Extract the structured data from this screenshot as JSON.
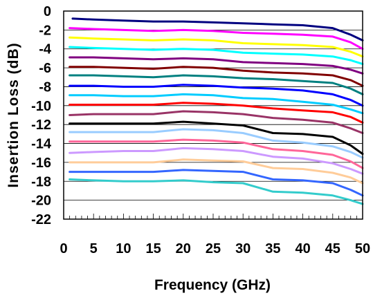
{
  "chart_data": {
    "type": "line",
    "title": "",
    "xlabel": "Frequency (GHz)",
    "ylabel": "Insertion Loss (dB)",
    "xlim": [
      0,
      50
    ],
    "ylim": [
      -22,
      0
    ],
    "x_ticks": [
      0,
      5,
      10,
      15,
      20,
      25,
      30,
      35,
      40,
      45,
      50
    ],
    "y_ticks": [
      0,
      -2,
      -4,
      -6,
      -8,
      -10,
      -12,
      -14,
      -16,
      -18,
      -20,
      -22
    ],
    "grid": true,
    "legend": "none",
    "series": [
      {
        "color": "#000080",
        "x": [
          1.5,
          5,
          10,
          15,
          20,
          25,
          30,
          35,
          40,
          45,
          48,
          50
        ],
        "values": [
          -0.8,
          -0.9,
          -1.0,
          -1.1,
          -1.1,
          -1.2,
          -1.3,
          -1.4,
          -1.5,
          -1.8,
          -2.5,
          -3.1
        ]
      },
      {
        "color": "#ff00ff",
        "x": [
          1,
          5,
          10,
          15,
          20,
          25,
          30,
          35,
          40,
          45,
          48,
          50
        ],
        "values": [
          -1.8,
          -1.9,
          -2.0,
          -2.1,
          -2.0,
          -2.1,
          -2.3,
          -2.4,
          -2.5,
          -2.7,
          -3.3,
          -4.0
        ]
      },
      {
        "color": "#ffff00",
        "x": [
          1,
          5,
          10,
          15,
          20,
          25,
          30,
          35,
          40,
          45,
          48,
          50
        ],
        "values": [
          -2.8,
          -2.9,
          -3.0,
          -3.1,
          -3.0,
          -3.1,
          -3.4,
          -3.5,
          -3.6,
          -3.8,
          -4.3,
          -4.8
        ]
      },
      {
        "color": "#00ffff",
        "x": [
          1,
          5,
          10,
          15,
          20,
          25,
          30,
          35,
          40,
          45,
          48,
          50
        ],
        "values": [
          -3.8,
          -3.9,
          -4.0,
          -4.1,
          -4.0,
          -4.1,
          -4.4,
          -4.5,
          -4.6,
          -4.8,
          -5.2,
          -5.6
        ]
      },
      {
        "color": "#800080",
        "x": [
          1,
          5,
          10,
          15,
          20,
          25,
          30,
          35,
          40,
          45,
          48,
          50
        ],
        "values": [
          -4.9,
          -4.9,
          -5.0,
          -5.1,
          -5.0,
          -5.1,
          -5.4,
          -5.5,
          -5.6,
          -5.8,
          -6.2,
          -6.6
        ]
      },
      {
        "color": "#800000",
        "x": [
          1,
          5,
          10,
          15,
          20,
          25,
          30,
          35,
          40,
          45,
          48,
          50
        ],
        "values": [
          -5.9,
          -5.9,
          -6.0,
          -6.1,
          -5.9,
          -6.0,
          -6.3,
          -6.5,
          -6.6,
          -6.8,
          -7.3,
          -7.9
        ]
      },
      {
        "color": "#008080",
        "x": [
          1,
          5,
          10,
          15,
          20,
          25,
          30,
          35,
          40,
          45,
          48,
          50
        ],
        "values": [
          -6.8,
          -6.8,
          -6.9,
          -7.0,
          -6.8,
          -6.9,
          -7.1,
          -7.2,
          -7.4,
          -7.6,
          -8.2,
          -8.8
        ]
      },
      {
        "color": "#0000ff",
        "x": [
          1,
          5,
          10,
          15,
          20,
          25,
          30,
          35,
          40,
          45,
          48,
          50
        ],
        "values": [
          -7.9,
          -7.9,
          -8.0,
          -8.0,
          -7.8,
          -7.9,
          -8.1,
          -8.2,
          -8.4,
          -8.8,
          -9.4,
          -10.0
        ]
      },
      {
        "color": "#00ccff",
        "x": [
          1,
          5,
          10,
          15,
          20,
          25,
          30,
          35,
          40,
          45,
          48,
          50
        ],
        "values": [
          -8.9,
          -8.9,
          -9.0,
          -9.0,
          -8.8,
          -8.9,
          -9.2,
          -9.3,
          -9.6,
          -9.9,
          -10.4,
          -10.8
        ]
      },
      {
        "color": "#ff0000",
        "x": [
          1,
          5,
          10,
          15,
          20,
          25,
          30,
          35,
          40,
          45,
          48,
          50
        ],
        "values": [
          -9.9,
          -9.9,
          -9.9,
          -9.9,
          -9.7,
          -9.8,
          -10.0,
          -10.3,
          -10.5,
          -10.7,
          -11.2,
          -11.8
        ]
      },
      {
        "color": "#993366",
        "x": [
          1,
          5,
          10,
          15,
          20,
          25,
          30,
          35,
          40,
          45,
          48,
          50
        ],
        "values": [
          -11.0,
          -10.9,
          -10.9,
          -10.9,
          -10.6,
          -10.7,
          -10.9,
          -11.3,
          -11.5,
          -11.8,
          -12.4,
          -12.9
        ]
      },
      {
        "color": "#000000",
        "x": [
          1,
          5,
          10,
          15,
          20,
          25,
          30,
          35,
          40,
          45,
          48,
          50
        ],
        "values": [
          -11.9,
          -11.9,
          -11.9,
          -11.9,
          -11.7,
          -11.9,
          -12.1,
          -12.9,
          -13.0,
          -13.3,
          -14.2,
          -15.1
        ]
      },
      {
        "color": "#99ccff",
        "x": [
          1,
          5,
          10,
          15,
          20,
          25,
          30,
          35,
          40,
          45,
          48,
          50
        ],
        "values": [
          -12.8,
          -12.8,
          -12.8,
          -12.8,
          -12.5,
          -12.6,
          -12.9,
          -13.7,
          -13.9,
          -14.3,
          -14.9,
          -15.5
        ]
      },
      {
        "color": "#ff6699",
        "x": [
          1,
          5,
          10,
          15,
          20,
          25,
          30,
          35,
          40,
          45,
          48,
          50
        ],
        "values": [
          -13.8,
          -13.8,
          -13.8,
          -13.8,
          -13.6,
          -13.7,
          -13.9,
          -14.6,
          -14.8,
          -15.2,
          -15.9,
          -16.6
        ]
      },
      {
        "color": "#cc99ff",
        "x": [
          1,
          5,
          10,
          15,
          20,
          25,
          30,
          35,
          40,
          45,
          48,
          50
        ],
        "values": [
          -15.0,
          -14.9,
          -14.8,
          -14.8,
          -14.5,
          -14.6,
          -14.8,
          -15.4,
          -15.6,
          -16.1,
          -16.7,
          -17.2
        ]
      },
      {
        "color": "#ffcc99",
        "x": [
          1,
          5,
          10,
          15,
          20,
          25,
          30,
          35,
          40,
          45,
          48,
          50
        ],
        "values": [
          -16.0,
          -16.0,
          -16.0,
          -16.0,
          -15.7,
          -15.8,
          -15.9,
          -16.6,
          -16.7,
          -17.1,
          -17.6,
          -18.2
        ]
      },
      {
        "color": "#3366ff",
        "x": [
          1,
          5,
          10,
          15,
          20,
          25,
          30,
          35,
          40,
          45,
          48,
          50
        ],
        "values": [
          -17.0,
          -17.0,
          -17.0,
          -17.0,
          -16.8,
          -16.9,
          -17.0,
          -17.8,
          -17.9,
          -18.2,
          -18.9,
          -19.5
        ]
      },
      {
        "color": "#33cccc",
        "x": [
          1,
          5,
          10,
          15,
          20,
          25,
          30,
          35,
          40,
          45,
          48,
          50
        ],
        "values": [
          -17.8,
          -17.9,
          -18.0,
          -18.0,
          -17.9,
          -18.1,
          -18.2,
          -19.1,
          -19.2,
          -19.5,
          -20.0,
          -20.4
        ]
      }
    ]
  }
}
